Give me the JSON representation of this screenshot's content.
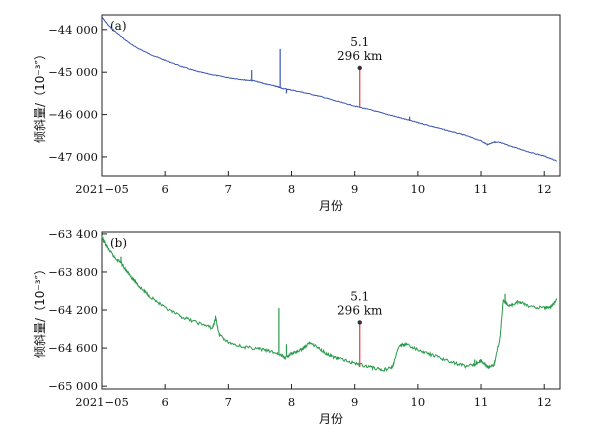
{
  "chart_data": [
    {
      "type": "line",
      "panel_label": "(a)",
      "ylabel": "倾斜量/（10⁻³″）",
      "xlabel": "月份",
      "xlim": [
        5,
        12.25
      ],
      "ylim": [
        -47450,
        -43650
      ],
      "x_ticks": [
        {
          "value": 5,
          "label": "2021−05"
        },
        {
          "value": 6,
          "label": "6"
        },
        {
          "value": 7,
          "label": "7"
        },
        {
          "value": 8,
          "label": "8"
        },
        {
          "value": 9,
          "label": "9"
        },
        {
          "value": 10,
          "label": "10"
        },
        {
          "value": 11,
          "label": "11"
        },
        {
          "value": 12,
          "label": "12"
        }
      ],
      "y_ticks": [
        {
          "value": -44000,
          "label": "−44 000"
        },
        {
          "value": -45000,
          "label": "−45 000"
        },
        {
          "value": -46000,
          "label": "−46 000"
        },
        {
          "value": -47000,
          "label": "−47 000"
        }
      ],
      "series_color": "#3a55b4",
      "series": {
        "x": [
          5.0,
          5.1,
          5.25,
          5.5,
          5.75,
          6.0,
          6.25,
          6.5,
          6.75,
          7.0,
          7.25,
          7.4,
          7.6,
          7.75,
          7.85,
          8.0,
          8.25,
          8.5,
          8.75,
          9.0,
          9.25,
          9.5,
          9.75,
          10.0,
          10.25,
          10.5,
          10.75,
          11.0,
          11.1,
          11.2,
          11.3,
          11.5,
          11.75,
          12.0,
          12.2
        ],
        "y": [
          -43700,
          -43900,
          -44100,
          -44380,
          -44570,
          -44720,
          -44860,
          -44980,
          -45060,
          -45130,
          -45180,
          -45200,
          -45280,
          -45330,
          -45380,
          -45420,
          -45500,
          -45590,
          -45700,
          -45800,
          -45890,
          -45990,
          -46090,
          -46190,
          -46290,
          -46390,
          -46490,
          -46620,
          -46710,
          -46650,
          -46660,
          -46760,
          -46880,
          -46980,
          -47100
        ]
      },
      "spikes": [
        {
          "x": 7.37,
          "y0": -45200,
          "y1": -44950
        },
        {
          "x": 7.82,
          "y0": -45370,
          "y1": -44450
        },
        {
          "x": 7.92,
          "y0": -45400,
          "y1": -45500
        },
        {
          "x": 9.87,
          "y0": -46150,
          "y1": -46050
        }
      ],
      "event": {
        "x": 9.08,
        "y0": -45820,
        "y1": -44900,
        "color": "#e63b3b",
        "line1": "5.1",
        "line2": "296 km"
      }
    },
    {
      "type": "line",
      "panel_label": "(b)",
      "ylabel": "倾斜量/（10⁻³″）",
      "xlabel": "月份",
      "xlim": [
        5,
        12.25
      ],
      "ylim": [
        -65030,
        -63380
      ],
      "x_ticks": [
        {
          "value": 5,
          "label": "2021−05"
        },
        {
          "value": 6,
          "label": "6"
        },
        {
          "value": 7,
          "label": "7"
        },
        {
          "value": 8,
          "label": "8"
        },
        {
          "value": 9,
          "label": "9"
        },
        {
          "value": 10,
          "label": "10"
        },
        {
          "value": 11,
          "label": "11"
        },
        {
          "value": 12,
          "label": "12"
        }
      ],
      "y_ticks": [
        {
          "value": -63400,
          "label": "−63 400"
        },
        {
          "value": -63800,
          "label": "−63 800"
        },
        {
          "value": -64200,
          "label": "−64 200"
        },
        {
          "value": -64600,
          "label": "−64 600"
        },
        {
          "value": -65000,
          "label": "−65 000"
        }
      ],
      "series_color": "#2a9a4c",
      "series": {
        "x": [
          5.0,
          5.1,
          5.2,
          5.3,
          5.4,
          5.5,
          5.6,
          5.75,
          6.0,
          6.25,
          6.5,
          6.75,
          6.8,
          6.85,
          7.0,
          7.25,
          7.5,
          7.75,
          7.9,
          8.0,
          8.15,
          8.3,
          8.45,
          8.6,
          8.75,
          9.0,
          9.25,
          9.45,
          9.6,
          9.7,
          9.8,
          10.0,
          10.25,
          10.5,
          10.75,
          10.9,
          11.0,
          11.1,
          11.2,
          11.3,
          11.35,
          11.45,
          11.6,
          11.75,
          12.0,
          12.1,
          12.2
        ],
        "y": [
          -63440,
          -63560,
          -63650,
          -63700,
          -63800,
          -63880,
          -63960,
          -64050,
          -64180,
          -64270,
          -64330,
          -64390,
          -64280,
          -64450,
          -64540,
          -64590,
          -64610,
          -64650,
          -64700,
          -64660,
          -64620,
          -64540,
          -64610,
          -64680,
          -64710,
          -64760,
          -64800,
          -64830,
          -64800,
          -64580,
          -64560,
          -64620,
          -64680,
          -64740,
          -64790,
          -64770,
          -64730,
          -64800,
          -64790,
          -64500,
          -64100,
          -64160,
          -64110,
          -64160,
          -64180,
          -64170,
          -64090
        ]
      },
      "spikes": [
        {
          "x": 5.3,
          "y0": -63700,
          "y1": -63640
        },
        {
          "x": 7.8,
          "y0": -64670,
          "y1": -64180
        },
        {
          "x": 7.92,
          "y0": -64680,
          "y1": -64560
        },
        {
          "x": 10.9,
          "y0": -64760,
          "y1": -64720
        },
        {
          "x": 11.38,
          "y0": -64120,
          "y1": -64030
        }
      ],
      "event": {
        "x": 9.08,
        "y0": -64800,
        "y1": -64330,
        "color": "#e63b3b",
        "line1": "5.1",
        "line2": "296 km"
      }
    }
  ]
}
